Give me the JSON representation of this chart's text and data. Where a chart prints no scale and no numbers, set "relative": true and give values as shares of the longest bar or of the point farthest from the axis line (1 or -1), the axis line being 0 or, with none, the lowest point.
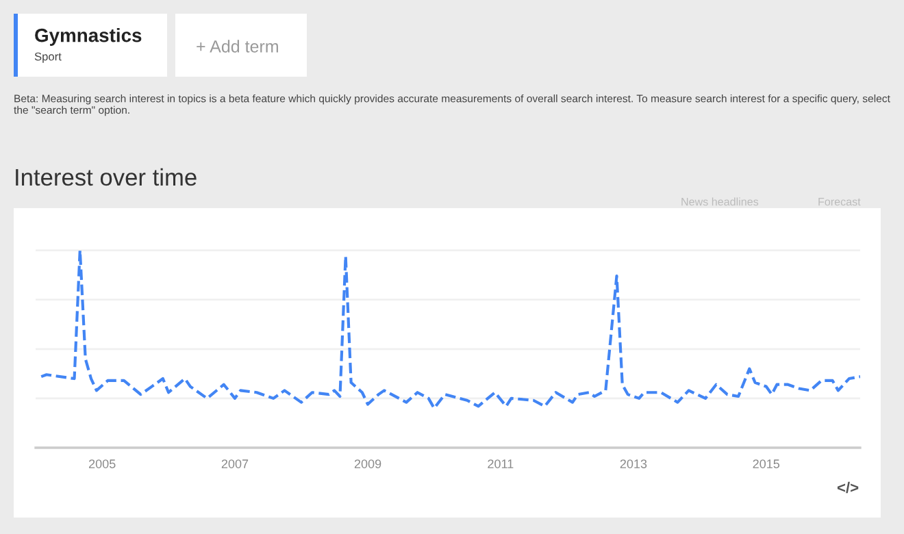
{
  "chart_data": {
    "type": "line",
    "title": "Interest over time",
    "relative": true,
    "legend": false,
    "marker": "none",
    "line_style": "dashed",
    "grid": "y",
    "annotations": [
      "Gymnastics",
      "Sport",
      "+ Add term",
      "Beta: Measuring search interest in topics is a beta feature which quickly provides accurate measurements of overall search interest. To measure search interest for a specific query, select the \"search term\" option.",
      "News headlines",
      "Forecast",
      "</>"
    ],
    "xlim": [
      "2004-01",
      "2016-06"
    ],
    "xticks": [
      "2005",
      "2007",
      "2009",
      "2011",
      "2013",
      "2015"
    ],
    "x": [
      "2004-02",
      "2004-03",
      "2004-08",
      "2004-09",
      "2004-10",
      "2004-11",
      "2004-12",
      "2005-02",
      "2005-05",
      "2005-08",
      "2005-10",
      "2005-12",
      "2006-01",
      "2006-04",
      "2006-05",
      "2006-08",
      "2006-11",
      "2007-01",
      "2007-02",
      "2007-05",
      "2007-08",
      "2007-10",
      "2008-01",
      "2008-03",
      "2008-06",
      "2008-07",
      "2008-08",
      "2008-09",
      "2008-10",
      "2008-12",
      "2009-01",
      "2009-03",
      "2009-04",
      "2009-08",
      "2009-10",
      "2009-12",
      "2010-01",
      "2010-03",
      "2010-07",
      "2010-09",
      "2010-12",
      "2011-02",
      "2011-03",
      "2011-07",
      "2011-09",
      "2011-11",
      "2012-02",
      "2012-03",
      "2012-05",
      "2012-06",
      "2012-08",
      "2012-10",
      "2012-11",
      "2012-12",
      "2013-02",
      "2013-03",
      "2013-06",
      "2013-09",
      "2013-11",
      "2014-02",
      "2014-04",
      "2014-06",
      "2014-08",
      "2014-10",
      "2014-11",
      "2015-01",
      "2015-02",
      "2015-03",
      "2015-05",
      "2015-07",
      "2015-09",
      "2015-11",
      "2016-01",
      "2016-02",
      "2016-04",
      "2016-06"
    ],
    "series": [
      {
        "color": "#4285f4",
        "values": [
          0.36,
          0.37,
          0.35,
          1.0,
          0.45,
          0.35,
          0.29,
          0.34,
          0.34,
          0.27,
          0.31,
          0.35,
          0.28,
          0.35,
          0.31,
          0.25,
          0.32,
          0.25,
          0.29,
          0.28,
          0.25,
          0.29,
          0.23,
          0.28,
          0.27,
          0.29,
          0.26,
          0.97,
          0.33,
          0.28,
          0.22,
          0.27,
          0.29,
          0.23,
          0.28,
          0.25,
          0.2,
          0.27,
          0.24,
          0.21,
          0.28,
          0.21,
          0.25,
          0.24,
          0.21,
          0.28,
          0.23,
          0.27,
          0.28,
          0.26,
          0.29,
          0.87,
          0.32,
          0.27,
          0.25,
          0.28,
          0.28,
          0.23,
          0.29,
          0.25,
          0.32,
          0.27,
          0.26,
          0.4,
          0.33,
          0.31,
          0.27,
          0.32,
          0.32,
          0.3,
          0.29,
          0.34,
          0.34,
          0.29,
          0.35,
          0.36
        ]
      }
    ]
  }
}
